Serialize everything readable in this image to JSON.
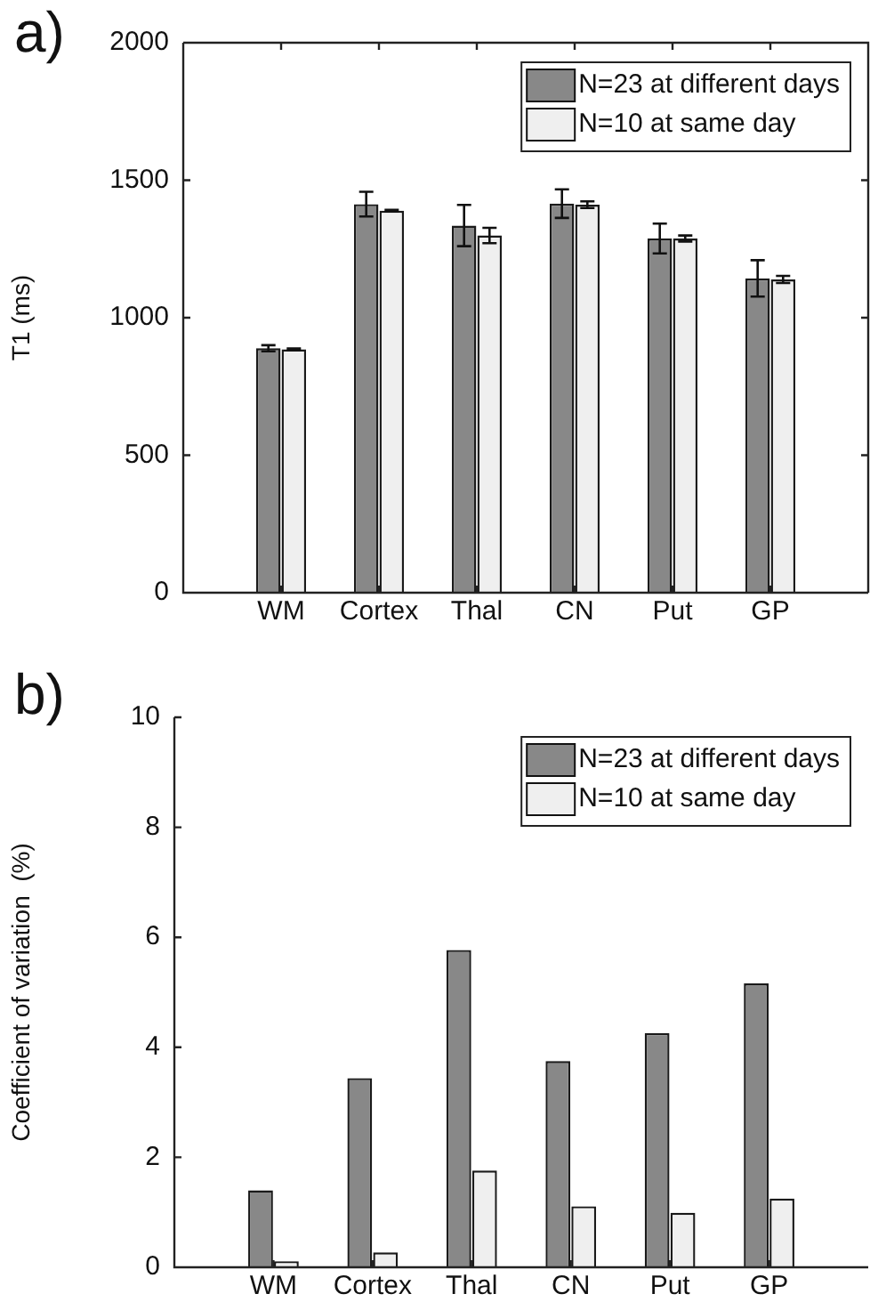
{
  "chart_data": [
    {
      "type": "bar",
      "annotations": [
        "a)"
      ],
      "ylabel": "T1 (ms)",
      "categories": [
        "WM",
        "Cortex",
        "Thal",
        "CN",
        "Put",
        "GP"
      ],
      "ylim": [
        0,
        2000
      ],
      "yticks": [
        0,
        500,
        1000,
        1500,
        2000
      ],
      "grid": false,
      "legend": "top right",
      "series": [
        {
          "name": "N=23 at different days",
          "color": "#888888",
          "values": [
            889,
            1413,
            1335,
            1415,
            1288,
            1143
          ],
          "errors": [
            11,
            45,
            75,
            52,
            54,
            66
          ]
        },
        {
          "name": "N=10 at same day",
          "color": "#efefef",
          "values": [
            885,
            1389,
            1299,
            1411,
            1288,
            1139
          ],
          "errors": [
            3,
            3,
            28,
            12,
            11,
            13
          ]
        }
      ]
    },
    {
      "type": "bar",
      "annotations": [
        "b)"
      ],
      "ylabel": "Coefficient of variation  (%)",
      "categories": [
        "WM",
        "Cortex",
        "Thal",
        "CN",
        "Put",
        "GP"
      ],
      "ylim": [
        0,
        10
      ],
      "yticks": [
        0,
        2,
        4,
        6,
        8,
        10
      ],
      "grid": false,
      "legend": "top right",
      "series": [
        {
          "name": "N=23 at different days",
          "color": "#888888",
          "values": [
            1.4,
            3.44,
            5.77,
            3.75,
            4.26,
            5.16
          ]
        },
        {
          "name": "N=10 at same day",
          "color": "#efefef",
          "values": [
            0.11,
            0.27,
            1.76,
            1.11,
            0.99,
            1.25
          ]
        }
      ]
    }
  ]
}
